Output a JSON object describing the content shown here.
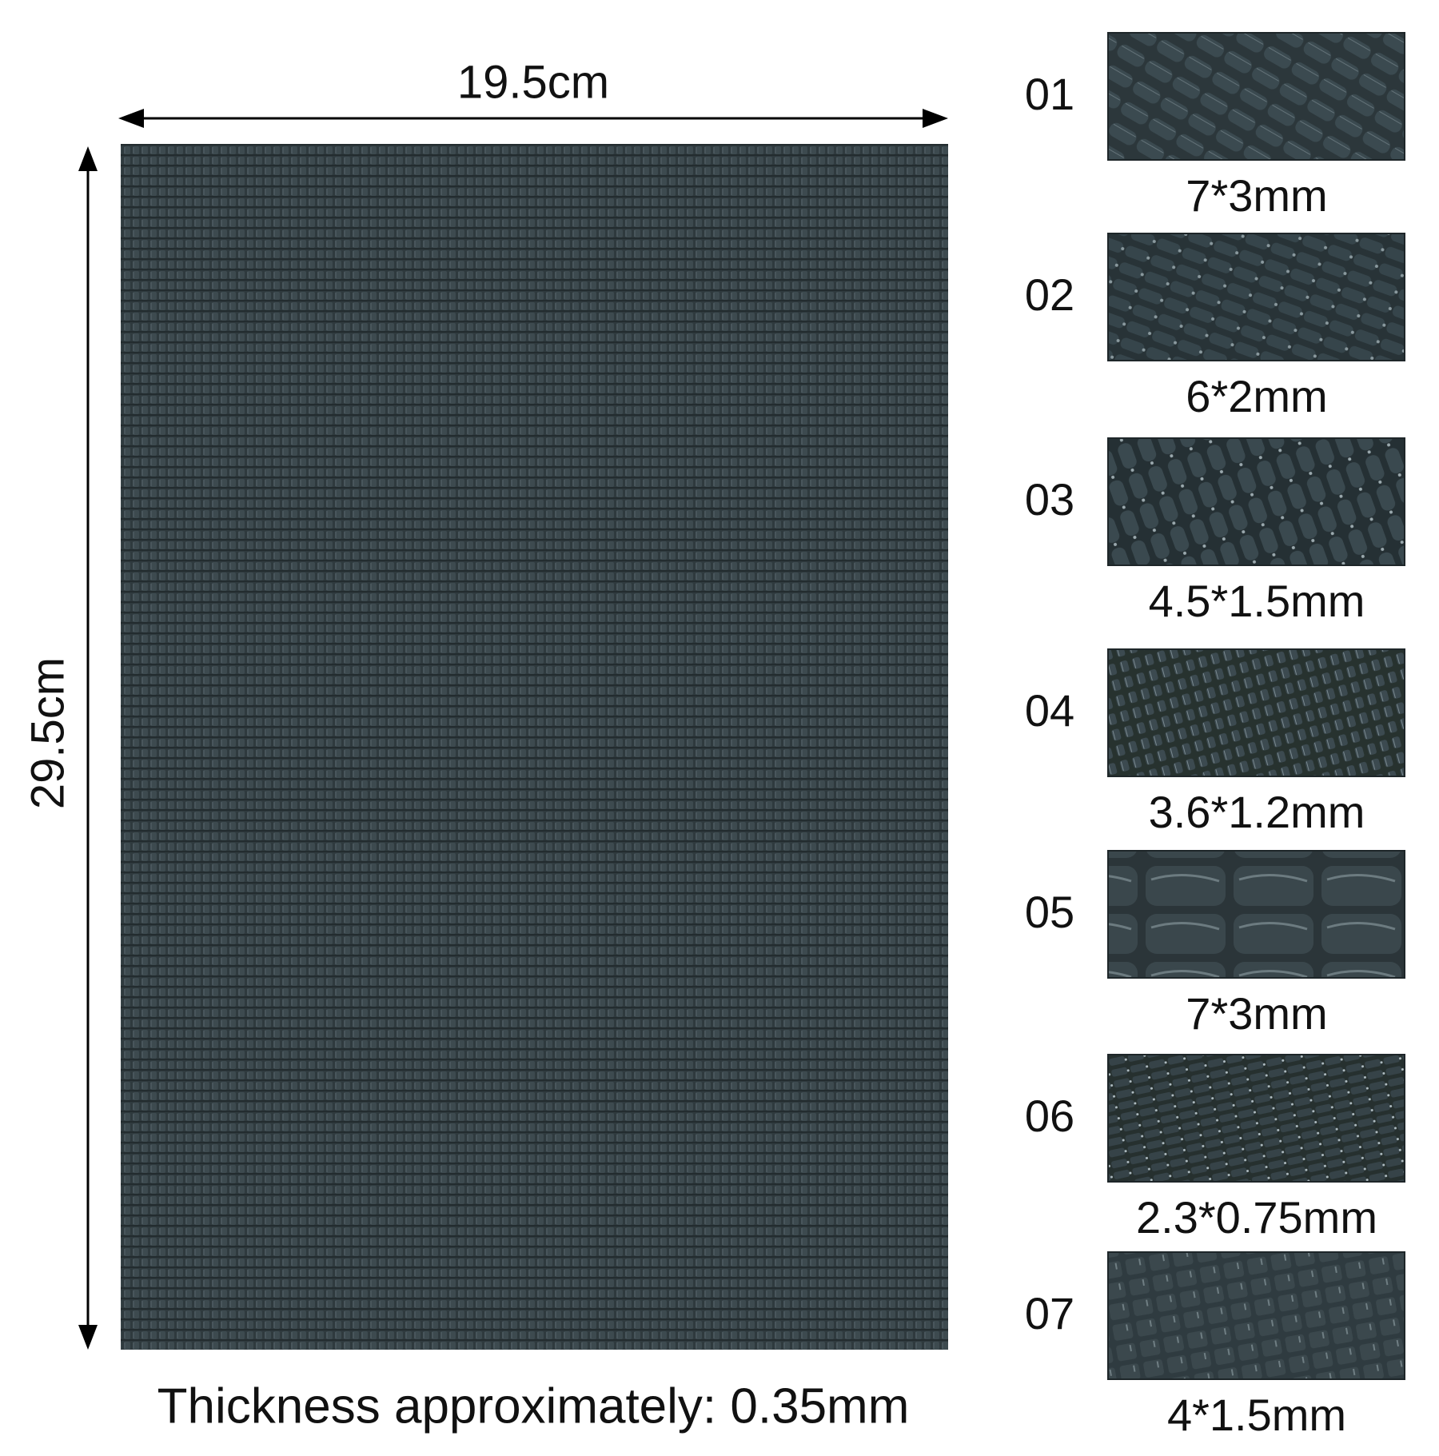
{
  "width_label": "19.5cm",
  "height_label": "29.5cm",
  "thickness": "Thickness approximately: 0.35mm",
  "items": [
    {
      "number": "01",
      "size": "7*3mm"
    },
    {
      "number": "02",
      "size": "6*2mm"
    },
    {
      "number": "03",
      "size": "4.5*1.5mm"
    },
    {
      "number": "04",
      "size": "3.6*1.2mm"
    },
    {
      "number": "05",
      "size": "7*3mm"
    },
    {
      "number": "06",
      "size": "2.3*0.75mm"
    },
    {
      "number": "07",
      "size": "4*1.5mm"
    }
  ]
}
